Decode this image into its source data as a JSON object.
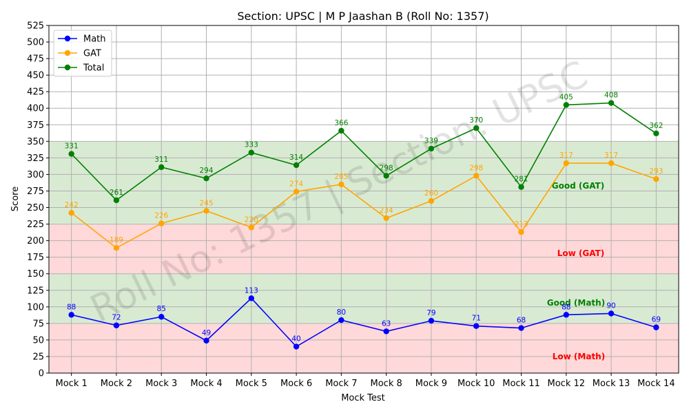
{
  "chart_data": {
    "type": "line",
    "title": "Section: UPSC | M P Jaashan B (Roll No: 1357)",
    "xlabel": "Mock Test",
    "ylabel": "Score",
    "ylim": [
      0,
      525
    ],
    "yticks": [
      0,
      25,
      50,
      75,
      100,
      125,
      150,
      175,
      200,
      225,
      250,
      275,
      300,
      325,
      350,
      375,
      400,
      425,
      450,
      475,
      500,
      525
    ],
    "grid": true,
    "legend_position": "top-left",
    "categories": [
      "Mock 1",
      "Mock 2",
      "Mock 3",
      "Mock 4",
      "Mock 5",
      "Mock 6",
      "Mock 7",
      "Mock 8",
      "Mock 9",
      "Mock 10",
      "Mock 11",
      "Mock 12",
      "Mock 13",
      "Mock 14"
    ],
    "series": [
      {
        "name": "Math",
        "color": "#0000ff",
        "values": [
          88,
          72,
          85,
          49,
          113,
          40,
          80,
          63,
          79,
          71,
          68,
          88,
          90,
          69
        ]
      },
      {
        "name": "GAT",
        "color": "#ffa500",
        "values": [
          242,
          189,
          226,
          245,
          220,
          274,
          285,
          234,
          260,
          298,
          213,
          317,
          317,
          293
        ]
      },
      {
        "name": "Total",
        "color": "#008000",
        "values": [
          331,
          261,
          311,
          294,
          333,
          314,
          366,
          298,
          339,
          370,
          281,
          405,
          408,
          362
        ]
      }
    ],
    "bands": [
      {
        "label": "Low (Math)",
        "from": 0,
        "to": 75,
        "fill": "#ffd9d9",
        "label_color": "#ff0000"
      },
      {
        "label": "Good (Math)",
        "from": 75,
        "to": 150,
        "fill": "#d9ead3",
        "label_color": "#008000"
      },
      {
        "label": "Low (GAT)",
        "from": 150,
        "to": 225,
        "fill": "#ffd9d9",
        "label_color": "#ff0000"
      },
      {
        "label": "Good (GAT)",
        "from": 225,
        "to": 350,
        "fill": "#d9ead3",
        "label_color": "#008000"
      }
    ],
    "watermark": "Roll No: 1357 | Section: UPSC"
  }
}
